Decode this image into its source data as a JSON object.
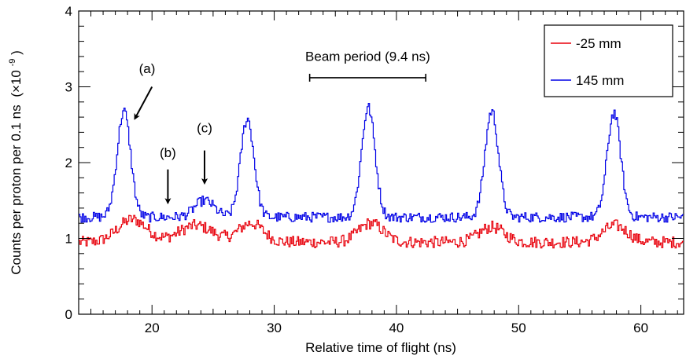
{
  "chart_data": {
    "type": "line",
    "title": "",
    "xlabel": "Relative time of flight (ns)",
    "ylabel": "Counts per proton per 0.1 ns",
    "ylabel_unit_prefix": "(×10",
    "ylabel_unit_exp": "-9",
    "ylabel_unit_suffix": ")",
    "xlim": [
      14,
      63.5
    ],
    "ylim": [
      0,
      4
    ],
    "x_ticks": [
      20,
      30,
      40,
      50,
      60
    ],
    "y_ticks": [
      0,
      1,
      2,
      3,
      4
    ],
    "x_tick_labels": [
      "20",
      "30",
      "40",
      "50",
      "60"
    ],
    "y_tick_labels": [
      "0",
      "1",
      "2",
      "3",
      "4"
    ],
    "grid": false,
    "legend_position": "top-right",
    "series": [
      {
        "name": "-25 mm",
        "color": "#e8000b",
        "baseline": 0.95,
        "noise": 0.06,
        "peaks": [
          {
            "center": 18.4,
            "height": 0.3,
            "width": 1.2
          },
          {
            "center": 23.6,
            "height": 0.22,
            "width": 1.4
          },
          {
            "center": 28.1,
            "height": 0.25,
            "width": 1.0
          },
          {
            "center": 37.9,
            "height": 0.25,
            "width": 1.0
          },
          {
            "center": 47.8,
            "height": 0.2,
            "width": 1.0
          },
          {
            "center": 57.9,
            "height": 0.22,
            "width": 1.0
          }
        ]
      },
      {
        "name": "145 mm",
        "color": "#0000e6",
        "baseline": 1.28,
        "noise": 0.05,
        "peaks": [
          {
            "center": 17.7,
            "height": 1.4,
            "width": 0.55
          },
          {
            "center": 24.3,
            "height": 0.22,
            "width": 0.8
          },
          {
            "center": 27.8,
            "height": 1.3,
            "width": 0.55
          },
          {
            "center": 37.7,
            "height": 1.45,
            "width": 0.55
          },
          {
            "center": 47.8,
            "height": 1.4,
            "width": 0.55
          },
          {
            "center": 57.8,
            "height": 1.38,
            "width": 0.55
          }
        ]
      }
    ],
    "annotations": [
      {
        "label": "(a)",
        "text_x": 19.6,
        "text_y": 3.18,
        "arrow_from": [
          20.0,
          3.0
        ],
        "arrow_to": [
          18.6,
          2.58
        ]
      },
      {
        "label": "(b)",
        "text_x": 21.3,
        "text_y": 2.07,
        "arrow_from": [
          21.3,
          1.91
        ],
        "arrow_to": [
          21.3,
          1.47
        ]
      },
      {
        "label": "(c)",
        "text_x": 24.3,
        "text_y": 2.4,
        "arrow_from": [
          24.3,
          2.16
        ],
        "arrow_to": [
          24.3,
          1.73
        ]
      }
    ],
    "span_annotation": {
      "label": "Beam period (9.4 ns)",
      "x_start": 32.9,
      "x_end": 42.4,
      "y": 3.12,
      "label_y": 3.34
    }
  }
}
